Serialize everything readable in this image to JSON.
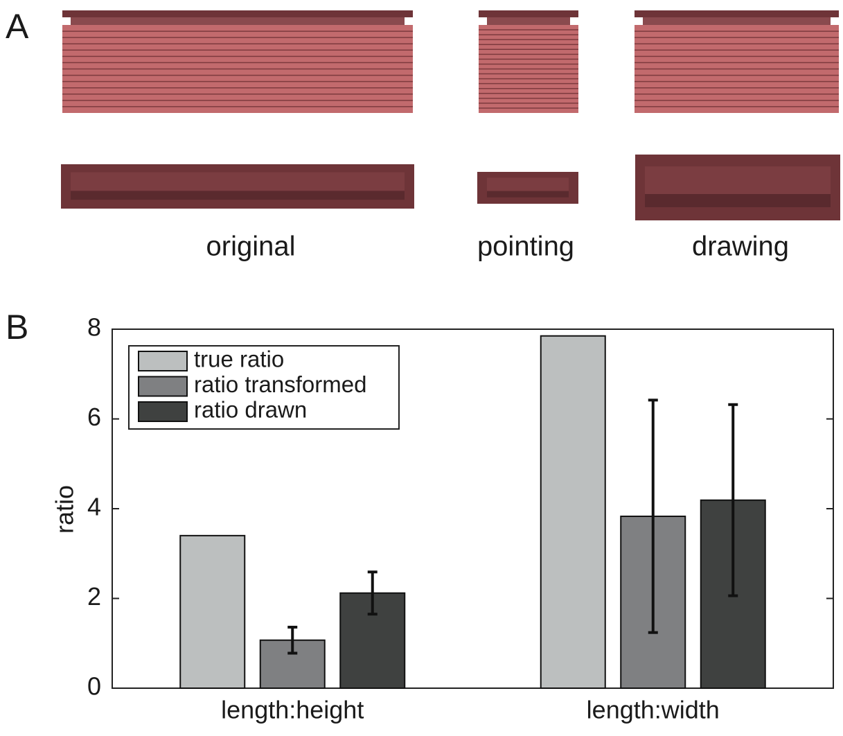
{
  "panel_labels": [
    "A",
    "B"
  ],
  "panel_a": {
    "captions": [
      "original",
      "pointing",
      "drawing"
    ]
  },
  "chart_data": {
    "type": "bar",
    "categories": [
      "length:height",
      "length:width"
    ],
    "ylabel": "ratio",
    "ylim": [
      0,
      8
    ],
    "yticks": [
      0,
      2,
      4,
      6,
      8
    ],
    "legend": "upper left",
    "series": [
      {
        "name": "true ratio",
        "color": "#bcbfbf",
        "values": [
          3.4,
          7.85
        ]
      },
      {
        "name": "ratio transformed",
        "color": "#7f8082",
        "values": [
          1.07,
          3.83
        ],
        "errors": [
          0.29,
          2.59
        ]
      },
      {
        "name": "ratio drawn",
        "color": "#3f4140",
        "values": [
          2.12,
          4.19
        ],
        "errors": [
          0.47,
          2.13
        ]
      }
    ]
  }
}
